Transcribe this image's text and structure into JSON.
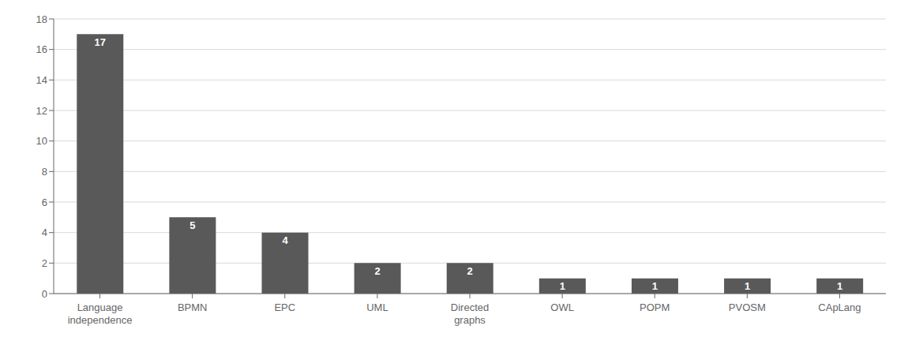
{
  "chart_data": {
    "type": "bar",
    "categories": [
      "Language\nindependence",
      "BPMN",
      "EPC",
      "UML",
      "Directed\ngraphs",
      "OWL",
      "POPM",
      "PVOSM",
      "CApLang"
    ],
    "values": [
      17,
      5,
      4,
      2,
      2,
      1,
      1,
      1,
      1
    ],
    "color": "#595959",
    "ylim": [
      0,
      18
    ],
    "yticks": [
      0,
      2,
      4,
      6,
      8,
      10,
      12,
      14,
      16,
      18
    ],
    "grid": true,
    "data_labels": true
  }
}
